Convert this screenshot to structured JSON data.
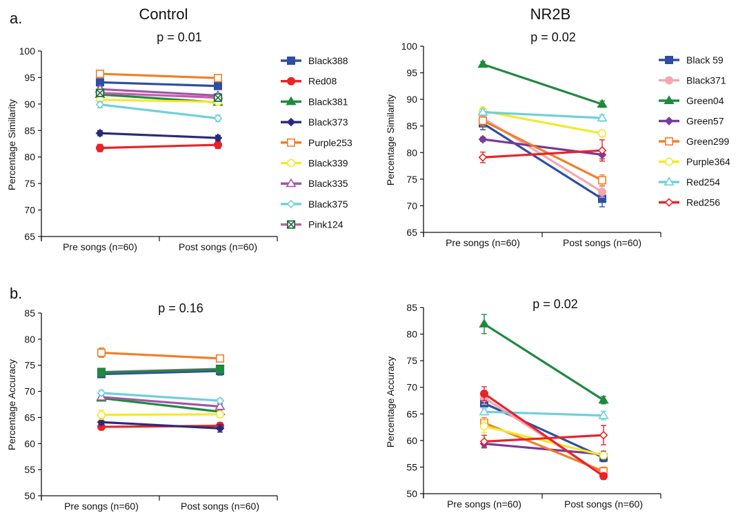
{
  "figure": {
    "panel_labels": [
      "a.",
      "b."
    ],
    "column_titles": [
      "Control",
      "NR2B"
    ]
  },
  "chart_data": [
    {
      "id": "a-control",
      "type": "line",
      "title": "p = 0.01",
      "xlabel": "",
      "ylabel": "Percentage Similarity",
      "categories": [
        "Pre songs (n=60)",
        "Post songs (n=60)"
      ],
      "ylim": [
        65,
        100
      ],
      "yticks": [
        65,
        70,
        75,
        80,
        85,
        90,
        95,
        100
      ],
      "grid": false,
      "legend_position": "right",
      "series": [
        {
          "name": "Black388",
          "values": [
            94.1,
            93.4
          ],
          "err": [
            0.5,
            0.5
          ],
          "color": "#2d4fa3",
          "marker": "square"
        },
        {
          "name": "Red08",
          "values": [
            81.7,
            82.3
          ],
          "err": [
            0.7,
            0.7
          ],
          "color": "#e8232a",
          "marker": "circle"
        },
        {
          "name": "Black381",
          "values": [
            91.8,
            90.3
          ],
          "err": [
            0.5,
            0.5
          ],
          "color": "#1e8a3e",
          "marker": "triangle"
        },
        {
          "name": "Black373",
          "values": [
            84.5,
            83.6
          ],
          "err": [
            0.5,
            0.5
          ],
          "color": "#2b2a7a",
          "marker": "diamond"
        },
        {
          "name": "Purple253",
          "values": [
            95.7,
            94.9
          ],
          "err": [
            0.5,
            0.5
          ],
          "color": "#f07f2a",
          "marker": "square-open"
        },
        {
          "name": "Black339",
          "values": [
            90.8,
            90.4
          ],
          "err": [
            0.4,
            0.4
          ],
          "color": "#f5e82a",
          "marker": "circle-open"
        },
        {
          "name": "Black335",
          "values": [
            92.8,
            91.6
          ],
          "err": [
            0.4,
            0.4
          ],
          "color": "#a356a8",
          "marker": "triangle-open"
        },
        {
          "name": "Black375",
          "values": [
            89.9,
            87.3
          ],
          "err": [
            0.6,
            0.6
          ],
          "color": "#6fcfdc",
          "marker": "diamond-open"
        },
        {
          "name": "Pink124",
          "values": [
            92.1,
            91.2
          ],
          "err": [
            0.6,
            0.6
          ],
          "color": "#c45bb0",
          "marker": "square-x"
        }
      ]
    },
    {
      "id": "a-nr2b",
      "type": "line",
      "title": "p = 0.02",
      "xlabel": "",
      "ylabel": "Percentage Similarity",
      "categories": [
        "Pre songs (n=60)",
        "Post songs (n=60)"
      ],
      "ylim": [
        65,
        100
      ],
      "yticks": [
        65,
        70,
        75,
        80,
        85,
        90,
        95,
        100
      ],
      "grid": false,
      "legend_position": "right",
      "series": [
        {
          "name": "Black 59",
          "values": [
            85.5,
            71.3
          ],
          "err": [
            1.2,
            1.5
          ],
          "color": "#2d4fa3",
          "marker": "square"
        },
        {
          "name": "Black371",
          "values": [
            86.5,
            72.6
          ],
          "err": [
            1.0,
            1.0
          ],
          "color": "#f4a7b0",
          "marker": "circle"
        },
        {
          "name": "Green04",
          "values": [
            96.6,
            89.1
          ],
          "err": [
            0.5,
            0.6
          ],
          "color": "#1e8a3e",
          "marker": "triangle"
        },
        {
          "name": "Green57",
          "values": [
            82.5,
            79.6
          ],
          "err": [
            0.4,
            0.8
          ],
          "color": "#7a3a97",
          "marker": "diamond"
        },
        {
          "name": "Green299",
          "values": [
            86.0,
            74.8
          ],
          "err": [
            1.0,
            1.0
          ],
          "color": "#f07f2a",
          "marker": "square-open"
        },
        {
          "name": "Purple364",
          "values": [
            87.8,
            83.6
          ],
          "err": [
            0.8,
            0.6
          ],
          "color": "#f5e82a",
          "marker": "circle-open"
        },
        {
          "name": "Red254",
          "values": [
            87.6,
            86.5
          ],
          "err": [
            0.6,
            0.6
          ],
          "color": "#6fcfdc",
          "marker": "triangle-open"
        },
        {
          "name": "Red256",
          "values": [
            79.1,
            80.4
          ],
          "err": [
            1.0,
            2.0
          ],
          "color": "#e8232a",
          "marker": "diamond-open"
        }
      ]
    },
    {
      "id": "b-control",
      "type": "line",
      "title": "p = 0.16",
      "xlabel": "",
      "ylabel": "Percentage  Accuracy",
      "categories": [
        "Pre songs (n=60)",
        "Post songs (n=60)"
      ],
      "ylim": [
        50,
        85
      ],
      "yticks": [
        50,
        55,
        60,
        65,
        70,
        75,
        80,
        85
      ],
      "grid": false,
      "legend_position": "none",
      "series": [
        {
          "name": "Black388",
          "values": [
            73.3,
            73.9
          ],
          "err": [
            0.5,
            0.8
          ],
          "color": "#2d4fa3",
          "marker": "square"
        },
        {
          "name": "Red08",
          "values": [
            63.2,
            63.4
          ],
          "err": [
            0.6,
            0.6
          ],
          "color": "#e8232a",
          "marker": "circle"
        },
        {
          "name": "Black381",
          "values": [
            68.7,
            66.1
          ],
          "err": [
            0.5,
            0.5
          ],
          "color": "#1e8a3e",
          "marker": "triangle"
        },
        {
          "name": "Black373",
          "values": [
            64.1,
            62.9
          ],
          "err": [
            0.5,
            0.7
          ],
          "color": "#2b2a7a",
          "marker": "diamond"
        },
        {
          "name": "Purple253",
          "values": [
            77.4,
            76.3
          ],
          "err": [
            0.9,
            0.4
          ],
          "color": "#f07f2a",
          "marker": "square-open"
        },
        {
          "name": "Black339",
          "values": [
            65.5,
            65.6
          ],
          "err": [
            0.9,
            0.6
          ],
          "color": "#f5e82a",
          "marker": "circle-open"
        },
        {
          "name": "Black335",
          "values": [
            68.9,
            67.1
          ],
          "err": [
            0.5,
            0.5
          ],
          "color": "#a356a8",
          "marker": "triangle-open"
        },
        {
          "name": "Black375",
          "values": [
            69.7,
            68.2
          ],
          "err": [
            0.5,
            0.4
          ],
          "color": "#6fcfdc",
          "marker": "diamond-open"
        },
        {
          "name": "Pink124",
          "values": [
            73.7,
            74.3
          ],
          "err": [
            0.5,
            0.5
          ],
          "color": "#c45bb0",
          "marker": "square-x"
        },
        {
          "name": "",
          "values": [
            73.6,
            74.2
          ],
          "err": [
            0.4,
            0.4
          ],
          "color": "#1e8a3e",
          "marker": "square"
        }
      ]
    },
    {
      "id": "b-nr2b",
      "type": "line",
      "title": "p = 0.02",
      "xlabel": "",
      "ylabel": "Percentage  Accuracy",
      "categories": [
        "Pre songs (n=60)",
        "Post songs (n=60)"
      ],
      "ylim": [
        50,
        85
      ],
      "yticks": [
        50,
        55,
        60,
        65,
        70,
        75,
        80,
        85
      ],
      "grid": false,
      "legend_position": "none",
      "series": [
        {
          "name": "Black 59",
          "values": [
            67.0,
            56.8
          ],
          "err": [
            1.0,
            0.8
          ],
          "color": "#2d4fa3",
          "marker": "square"
        },
        {
          "name": "Black371",
          "values": [
            68.0,
            53.6
          ],
          "err": [
            1.2,
            0.6
          ],
          "color": "#f4a7b0",
          "marker": "circle"
        },
        {
          "name": "Green04",
          "values": [
            81.9,
            67.6
          ],
          "err": [
            1.8,
            0.7
          ],
          "color": "#1e8a3e",
          "marker": "triangle"
        },
        {
          "name": "Green57",
          "values": [
            59.4,
            57.4
          ],
          "err": [
            0.6,
            0.6
          ],
          "color": "#7a3a97",
          "marker": "diamond"
        },
        {
          "name": "Green299",
          "values": [
            63.3,
            54.2
          ],
          "err": [
            1.0,
            0.8
          ],
          "color": "#f07f2a",
          "marker": "square-open"
        },
        {
          "name": "Purple364",
          "values": [
            62.7,
            57.2
          ],
          "err": [
            1.2,
            0.6
          ],
          "color": "#f5e82a",
          "marker": "circle-open"
        },
        {
          "name": "Red254",
          "values": [
            65.4,
            64.7
          ],
          "err": [
            0.6,
            0.8
          ],
          "color": "#6fcfdc",
          "marker": "triangle-open"
        },
        {
          "name": "Red256",
          "values": [
            59.8,
            61.0
          ],
          "err": [
            1.2,
            1.8
          ],
          "color": "#e8232a",
          "marker": "diamond-open"
        },
        {
          "name": "",
          "values": [
            68.8,
            53.3
          ],
          "err": [
            1.3,
            0.6
          ],
          "color": "#e8232a",
          "marker": "circle"
        }
      ]
    }
  ]
}
